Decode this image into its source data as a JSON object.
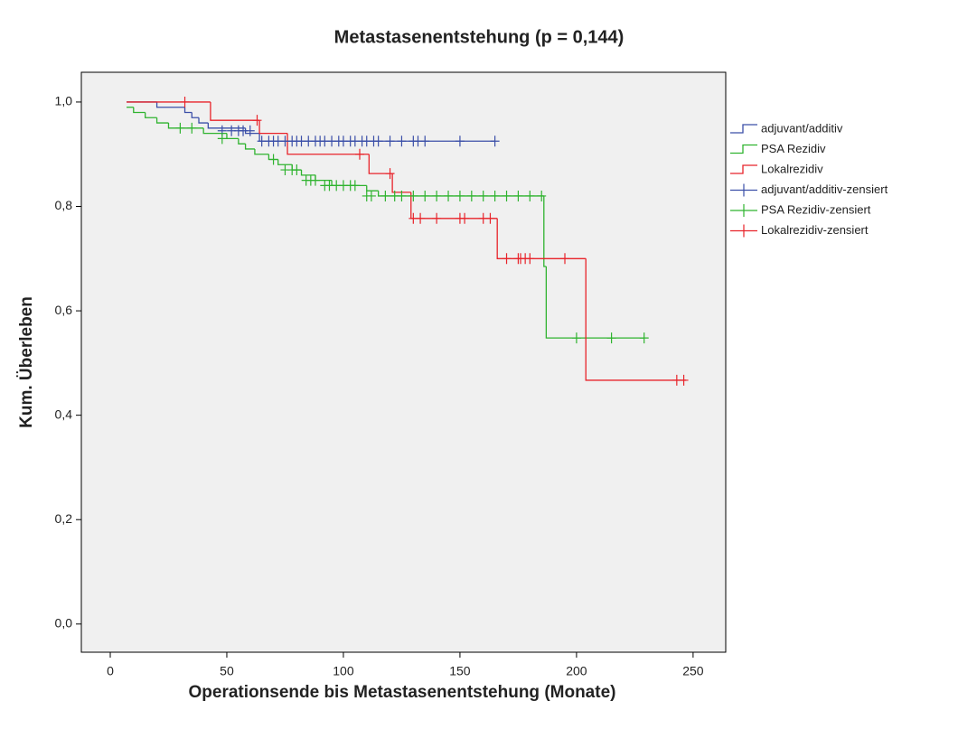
{
  "chart_data": {
    "type": "kaplan-meier",
    "title": "Metastasenentstehung (p = 0,144)",
    "x_label": "Operationsende bis Metastasenentstehung (Monate)",
    "y_label": "Kum. Überleben",
    "xlim": [
      -12.4,
      264
    ],
    "ylim": [
      -0.054,
      1.057
    ],
    "xticks": [
      0,
      50,
      100,
      150,
      200,
      250
    ],
    "yticks": [
      {
        "value": 0,
        "label": "0,0"
      },
      {
        "value": 0.2,
        "label": "0,2"
      },
      {
        "value": 0.4,
        "label": "0,4"
      },
      {
        "value": 0.6,
        "label": "0,6"
      },
      {
        "value": 0.8,
        "label": "0,8"
      },
      {
        "value": 1,
        "label": "1,0"
      }
    ],
    "series": [
      {
        "name": "adjuvant/additiv",
        "color": "#3b4fa8",
        "x": [
          7,
          20,
          32,
          35,
          38,
          42,
          58,
          64,
          165
        ],
        "values": [
          1.0,
          0.99,
          0.98,
          0.97,
          0.96,
          0.95,
          0.94,
          0.925,
          0.925
        ]
      },
      {
        "name": "PSA Rezidiv",
        "color": "#2fb32f",
        "x": [
          7,
          10,
          15,
          20,
          25,
          40,
          50,
          55,
          58,
          62,
          68,
          72,
          78,
          82,
          88,
          95,
          110,
          115,
          186,
          187,
          229
        ],
        "values": [
          0.99,
          0.98,
          0.97,
          0.96,
          0.95,
          0.94,
          0.93,
          0.92,
          0.91,
          0.9,
          0.89,
          0.88,
          0.87,
          0.86,
          0.85,
          0.84,
          0.83,
          0.82,
          0.685,
          0.548,
          0.548
        ]
      },
      {
        "name": "Lokalrezidiv",
        "color": "#e8232a",
        "x": [
          7,
          43,
          64,
          76,
          111,
          121,
          129,
          166,
          204,
          247
        ],
        "values": [
          1.0,
          0.965,
          0.94,
          0.9,
          0.863,
          0.827,
          0.777,
          0.7,
          0.467,
          0.467
        ]
      }
    ],
    "censored": [
      {
        "name": "adjuvant/additiv-zensiert",
        "color": "#3b4fa8",
        "x": [
          48,
          52,
          55,
          57,
          60,
          65,
          68,
          70,
          72,
          75,
          78,
          80,
          82,
          85,
          88,
          90,
          92,
          95,
          98,
          100,
          103,
          105,
          108,
          110,
          113,
          115,
          120,
          125,
          130,
          132,
          135,
          150,
          165
        ],
        "values": [
          0.945,
          0.945,
          0.945,
          0.945,
          0.945,
          0.925,
          0.925,
          0.925,
          0.925,
          0.925,
          0.925,
          0.925,
          0.925,
          0.925,
          0.925,
          0.925,
          0.925,
          0.925,
          0.925,
          0.925,
          0.925,
          0.925,
          0.925,
          0.925,
          0.925,
          0.925,
          0.925,
          0.925,
          0.925,
          0.925,
          0.925,
          0.925,
          0.925
        ]
      },
      {
        "name": "PSA Rezidiv-zensiert",
        "color": "#2fb32f",
        "x": [
          30,
          35,
          48,
          70,
          75,
          78,
          80,
          84,
          86,
          88,
          92,
          94,
          97,
          100,
          103,
          105,
          110,
          112,
          118,
          122,
          125,
          130,
          135,
          140,
          145,
          150,
          155,
          160,
          165,
          170,
          175,
          180,
          185,
          200,
          215,
          229
        ],
        "values": [
          0.95,
          0.95,
          0.93,
          0.89,
          0.87,
          0.87,
          0.87,
          0.85,
          0.85,
          0.85,
          0.84,
          0.84,
          0.84,
          0.84,
          0.84,
          0.84,
          0.82,
          0.82,
          0.82,
          0.82,
          0.82,
          0.82,
          0.82,
          0.82,
          0.82,
          0.82,
          0.82,
          0.82,
          0.82,
          0.82,
          0.82,
          0.82,
          0.82,
          0.548,
          0.548,
          0.548
        ]
      },
      {
        "name": "Lokalrezidiv-zensiert",
        "color": "#e8232a",
        "x": [
          32,
          63,
          107,
          120,
          130,
          133,
          140,
          150,
          152,
          160,
          163,
          170,
          175,
          176,
          178,
          180,
          195,
          243,
          246
        ],
        "values": [
          1.0,
          0.965,
          0.9,
          0.863,
          0.777,
          0.777,
          0.777,
          0.777,
          0.777,
          0.777,
          0.777,
          0.7,
          0.7,
          0.7,
          0.7,
          0.7,
          0.7,
          0.467,
          0.467
        ]
      }
    ]
  }
}
